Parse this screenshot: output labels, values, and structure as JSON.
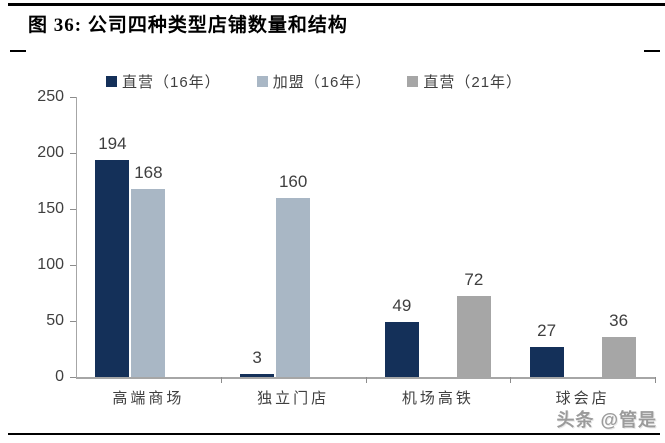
{
  "figure": {
    "title": "图 36:  公司四种类型店铺数量和结构"
  },
  "watermark": "头条 @管是",
  "chart_data": {
    "type": "bar",
    "title": "公司四种类型店铺数量和结构",
    "categories": [
      "高端商场",
      "独立门店",
      "机场高铁",
      "球会店"
    ],
    "series": [
      {
        "name": "直营（16年）",
        "color": "#143059",
        "values": [
          194,
          3,
          49,
          27
        ]
      },
      {
        "name": "加盟（16年）",
        "color": "#a9b7c5",
        "values": [
          168,
          160,
          null,
          null
        ]
      },
      {
        "name": "直营（21年）",
        "color": "#a6a6a6",
        "values": [
          null,
          null,
          72,
          36
        ]
      }
    ],
    "value_labels": [
      [
        194,
        3,
        49,
        27
      ],
      [
        168,
        160,
        null,
        null
      ],
      [
        null,
        null,
        72,
        36
      ]
    ],
    "ylim": [
      0,
      250
    ],
    "yticks": [
      0,
      50,
      100,
      150,
      200,
      250
    ],
    "legend_position": "top",
    "grid": false,
    "colors": {
      "axis": "#a6a6a6",
      "tick": "#8c8c8c",
      "label": "#3f3f3f",
      "title": "#000000"
    }
  }
}
